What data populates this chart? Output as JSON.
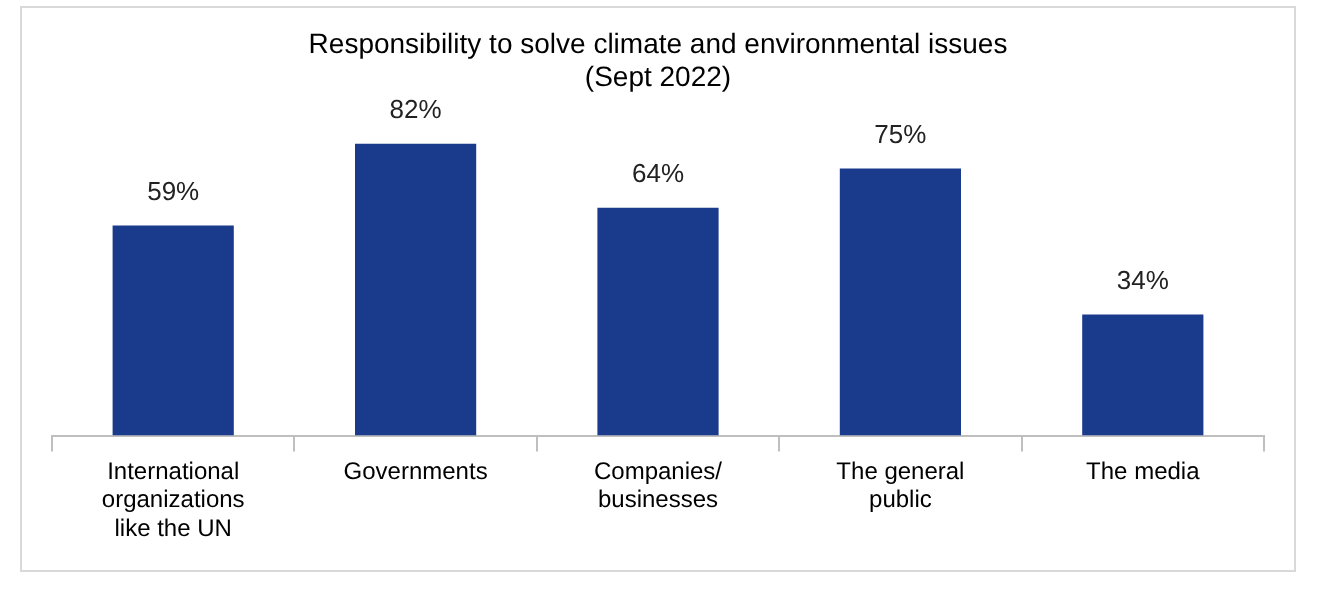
{
  "chart_data": {
    "type": "bar",
    "title": "Responsibility to solve climate and environmental issues",
    "subtitle": "(Sept 2022)",
    "categories": [
      "International organizations like the UN",
      "Governments",
      "Companies/ businesses",
      "The general public",
      "The media"
    ],
    "values": [
      59,
      82,
      64,
      75,
      34
    ],
    "value_labels": [
      "59%",
      "82%",
      "64%",
      "75%",
      "34%"
    ],
    "color": "#1a3a8c",
    "grid": false,
    "legend": false
  }
}
